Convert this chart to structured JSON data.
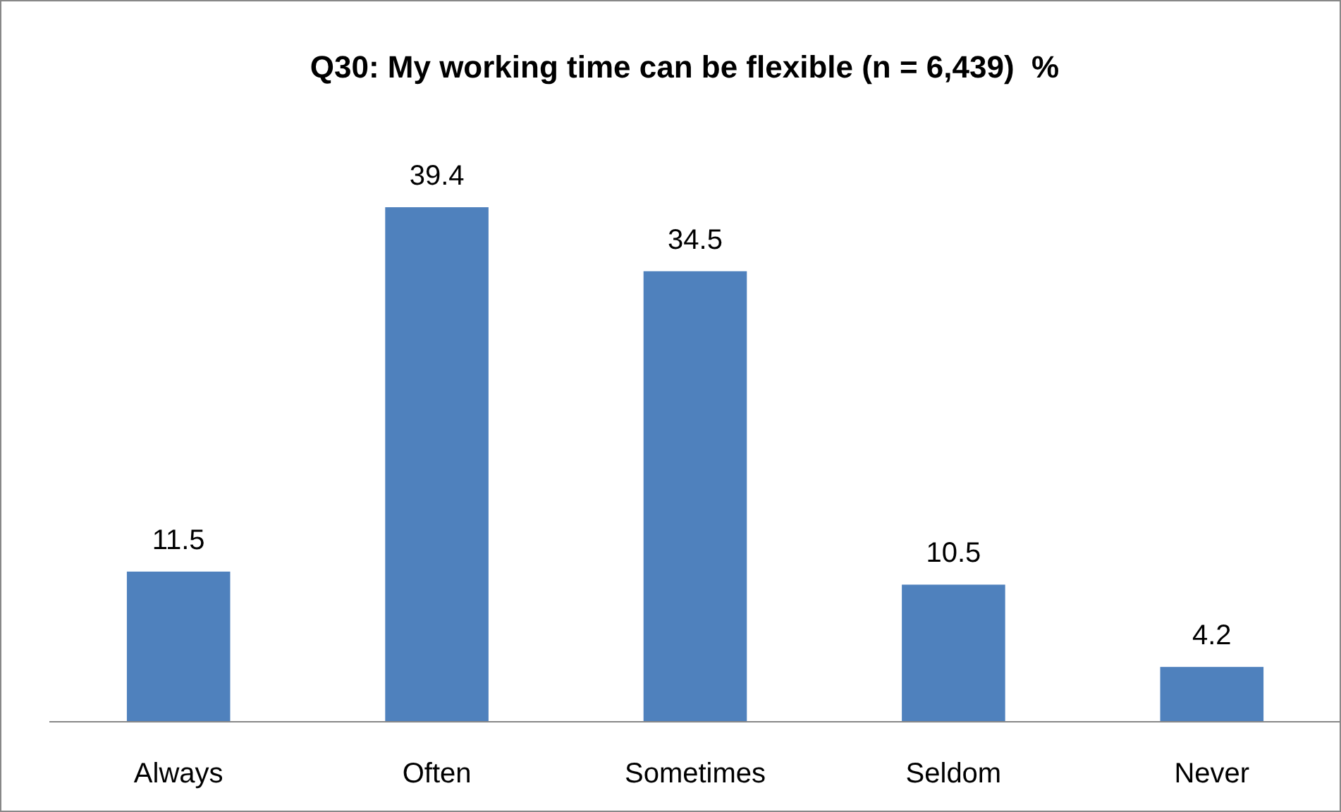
{
  "chart_data": {
    "type": "bar",
    "title": "Q30: My working time can be flexible (n = 6,439)  %",
    "categories": [
      "Always",
      "Often",
      "Sometimes",
      "Seldom",
      "Never"
    ],
    "values": [
      11.5,
      39.4,
      34.5,
      10.5,
      4.2
    ],
    "color": "#4f81bd",
    "data_labels": true
  }
}
